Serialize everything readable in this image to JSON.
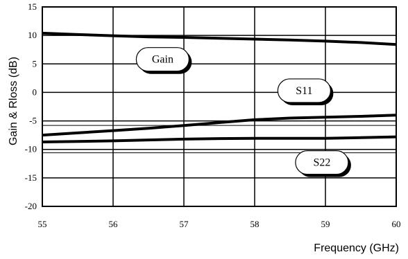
{
  "chart_data": {
    "type": "line",
    "title": "",
    "xlabel": "Frequency (GHz)",
    "ylabel": "Gain & Rloss (dB)",
    "xlim": [
      55,
      60
    ],
    "ylim": [
      -20,
      15
    ],
    "x_ticks": [
      55,
      56,
      57,
      58,
      59,
      60
    ],
    "y_ticks": [
      -20,
      -15,
      -10,
      -5,
      0,
      5,
      10,
      15
    ],
    "grid": true,
    "series": [
      {
        "name": "Gain",
        "x": [
          55,
          55.5,
          56,
          56.5,
          57,
          57.5,
          58,
          58.5,
          59,
          59.5,
          60
        ],
        "y": [
          10.4,
          10.15,
          9.95,
          9.75,
          9.65,
          9.5,
          9.35,
          9.2,
          9.0,
          8.75,
          8.4
        ]
      },
      {
        "name": "S11",
        "x": [
          55,
          55.5,
          56,
          56.5,
          57,
          57.5,
          58,
          58.5,
          59,
          59.5,
          60
        ],
        "y": [
          -7.5,
          -7.1,
          -6.7,
          -6.3,
          -5.8,
          -5.3,
          -4.8,
          -4.5,
          -4.35,
          -4.2,
          -4.0
        ]
      },
      {
        "name": "S22",
        "x": [
          55,
          55.5,
          56,
          56.5,
          57,
          57.5,
          58,
          58.5,
          59,
          59.5,
          60
        ],
        "y": [
          -8.7,
          -8.6,
          -8.5,
          -8.35,
          -8.2,
          -8.1,
          -8.05,
          -8.05,
          -8.05,
          -7.95,
          -7.8
        ]
      }
    ],
    "callouts": [
      {
        "label": "Gain",
        "x": 56.7,
        "y": 5.8
      },
      {
        "label": "S11",
        "x": 58.7,
        "y": 0.3
      },
      {
        "label": "S22",
        "x": 58.95,
        "y": -12.3
      }
    ],
    "color": "#000000"
  }
}
